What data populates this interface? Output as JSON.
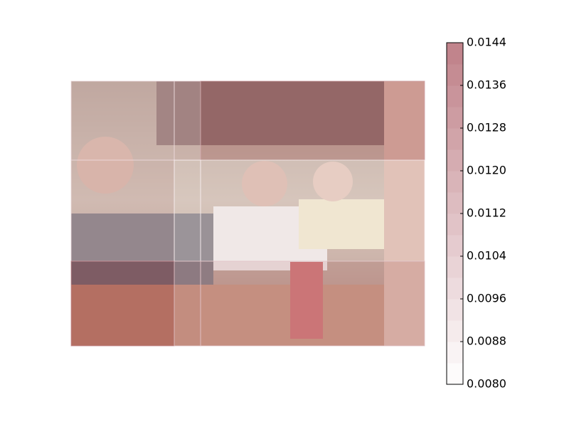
{
  "chart_data": {
    "type": "heatmap",
    "xedges": [
      0,
      145,
      182,
      497
    ],
    "yedges": [
      0,
      111,
      253,
      372
    ],
    "values": [
      [
        0.0098,
        0.01,
        0.0126
      ],
      [
        0.01,
        0.0088,
        0.009
      ],
      [
        0.014,
        0.0112,
        0.011
      ]
    ],
    "cmap": [
      "#ffffff",
      "#bf8088"
    ],
    "clim": [
      0.008,
      0.0144
    ],
    "cticks": [
      {
        "value": 0.008,
        "label": "0.0080"
      },
      {
        "value": 0.0088,
        "label": "0.0088"
      },
      {
        "value": 0.0096,
        "label": "0.0096"
      },
      {
        "value": 0.0104,
        "label": "0.0104"
      },
      {
        "value": 0.0112,
        "label": "0.0112"
      },
      {
        "value": 0.012,
        "label": "0.0120"
      },
      {
        "value": 0.0128,
        "label": "0.0128"
      },
      {
        "value": 0.0136,
        "label": "0.0136"
      },
      {
        "value": 0.0144,
        "label": "0.0144"
      }
    ]
  }
}
